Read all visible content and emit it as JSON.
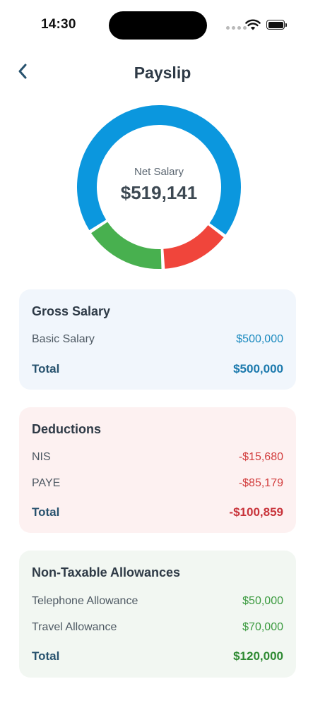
{
  "status": {
    "time": "14:30"
  },
  "header": {
    "title": "Payslip"
  },
  "summary": {
    "label": "Net Salary",
    "value": "$519,141"
  },
  "chart": {
    "segments": [
      {
        "name": "gross",
        "value": 500000,
        "color": "#0b97de"
      },
      {
        "name": "deductions",
        "value": 100859,
        "color": "#f0453b"
      },
      {
        "name": "allowances",
        "value": 120000,
        "color": "#48b04f"
      }
    ]
  },
  "gross": {
    "title": "Gross Salary",
    "items": [
      {
        "label": "Basic Salary",
        "amount": "$500,000"
      }
    ],
    "total_label": "Total",
    "total": "$500,000"
  },
  "deductions": {
    "title": "Deductions",
    "items": [
      {
        "label": "NIS",
        "amount": "-$15,680"
      },
      {
        "label": "PAYE",
        "amount": "-$85,179"
      }
    ],
    "total_label": "Total",
    "total": "-$100,859"
  },
  "allowances": {
    "title": "Non-Taxable Allowances",
    "items": [
      {
        "label": "Telephone Allowance",
        "amount": "$50,000"
      },
      {
        "label": "Travel Allowance",
        "amount": "$70,000"
      }
    ],
    "total_label": "Total",
    "total": "$120,000"
  }
}
